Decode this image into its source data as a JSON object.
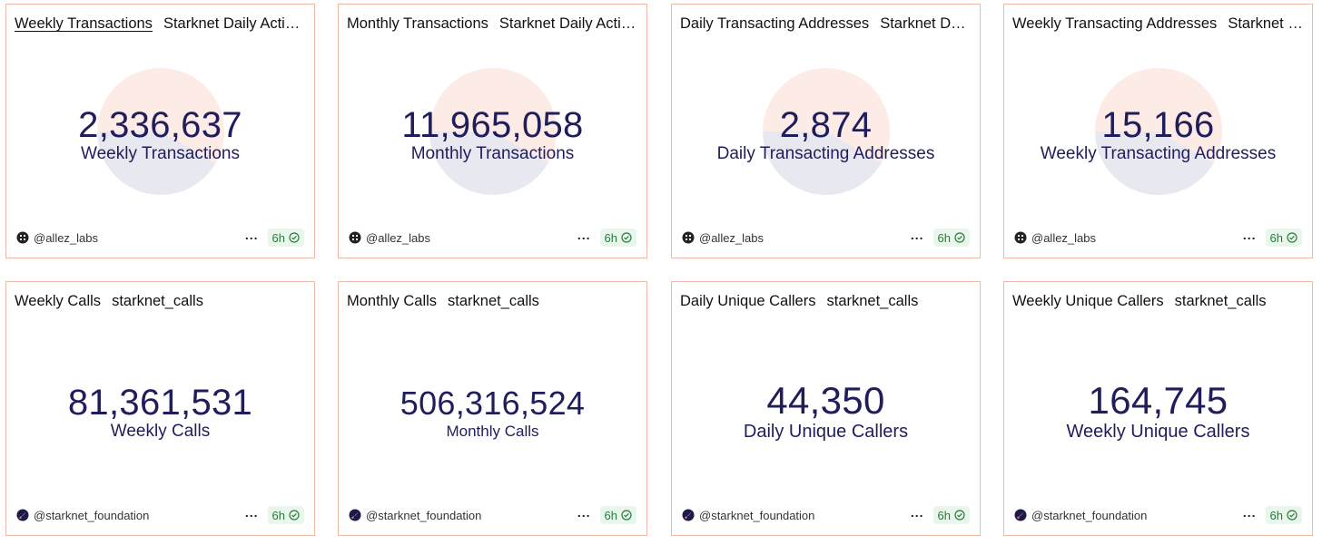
{
  "cards": [
    {
      "tab_title": "Weekly Transactions",
      "tab_secondary": "Starknet Daily Active Users",
      "value": "2,336,637",
      "label": "Weekly Transactions",
      "author": "@allez_labs",
      "freshness": "6h"
    },
    {
      "tab_title": "Monthly Transactions",
      "tab_secondary": "Starknet Daily Active Users",
      "value": "11,965,058",
      "label": "Monthly Transactions",
      "author": "@allez_labs",
      "freshness": "6h"
    },
    {
      "tab_title": "Daily Transacting Addresses",
      "tab_secondary": "Starknet Daily Active Users",
      "value": "2,874",
      "label": "Daily Transacting Addresses",
      "author": "@allez_labs",
      "freshness": "6h"
    },
    {
      "tab_title": "Weekly Transacting Addresses",
      "tab_secondary": "Starknet Daily Active Users",
      "value": "15,166",
      "label": "Weekly Transacting Addresses",
      "author": "@allez_labs",
      "freshness": "6h"
    },
    {
      "tab_title": "Weekly Calls",
      "tab_secondary": "starknet_calls",
      "value": "81,361,531",
      "label": "Weekly Calls",
      "author": "@starknet_foundation",
      "freshness": "6h"
    },
    {
      "tab_title": "Monthly Calls",
      "tab_secondary": "starknet_calls",
      "value": "506,316,524",
      "label": "Monthly Calls",
      "author": "@starknet_foundation",
      "freshness": "6h"
    },
    {
      "tab_title": "Daily Unique Callers",
      "tab_secondary": "starknet_calls",
      "value": "44,350",
      "label": "Daily Unique Callers",
      "author": "@starknet_foundation",
      "freshness": "6h"
    },
    {
      "tab_title": "Weekly Unique Callers",
      "tab_secondary": "starknet_calls",
      "value": "164,745",
      "label": "Weekly Unique Callers",
      "author": "@starknet_foundation",
      "freshness": "6h"
    }
  ],
  "colors": {
    "card_border": "#f0b8a6",
    "counter_text": "#1f1d5c",
    "fresh_badge_bg": "#e9f6ec",
    "fresh_badge_text": "#2a7a3d",
    "pie_light": "#fdebe5",
    "pie_dark": "#e8e8f1"
  },
  "icons": {
    "allez_author": "grid-logo-icon",
    "starknet_author": "starknet-logo-icon",
    "more": "more-dots-icon",
    "freshness": "check-circle-icon"
  }
}
